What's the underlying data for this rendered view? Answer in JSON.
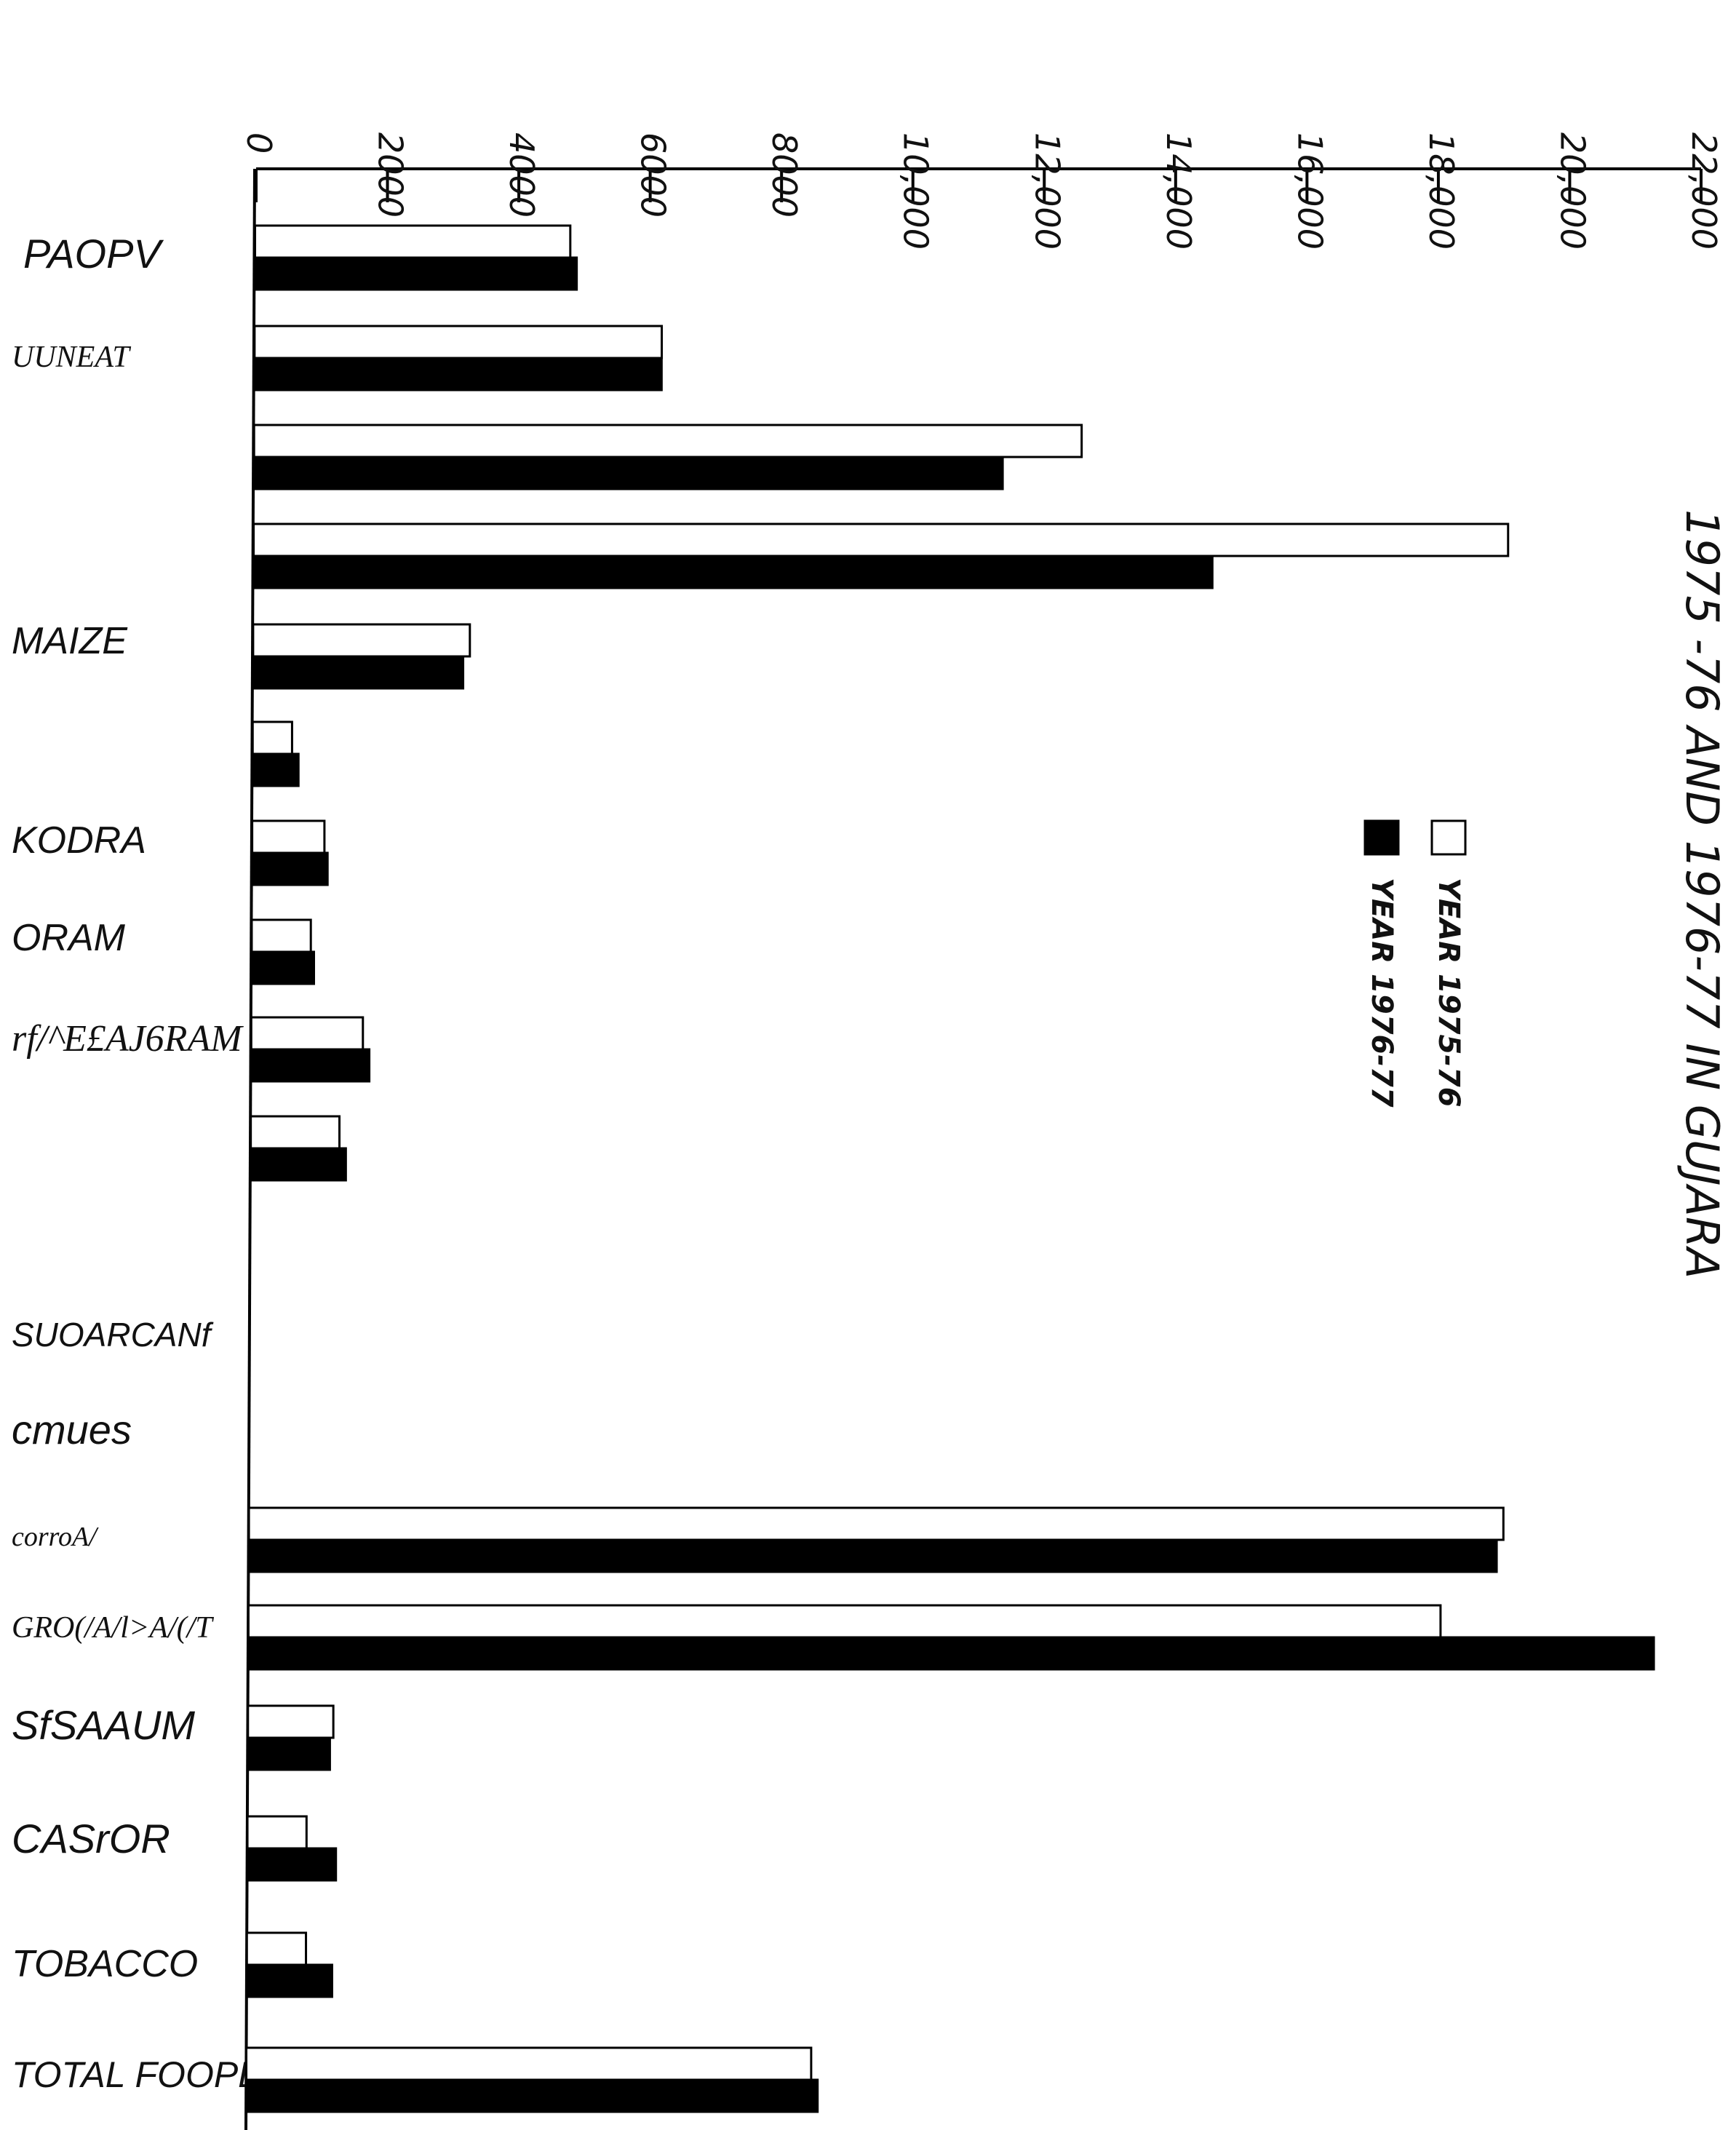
{
  "chart_data": {
    "type": "bar",
    "orientation": "horizontal",
    "title": "1975 -76 AND 1976-77 IN GUJARA",
    "xlim": [
      0,
      22000
    ],
    "x_ticks": [
      "0",
      "2000",
      "4000",
      "6000",
      "8000",
      "10,000",
      "12,000",
      "14,000",
      "16,000",
      "18,000",
      "20,000",
      "22,000"
    ],
    "categories": [
      "PAOPV",
      "UUNEAT",
      "",
      "",
      "MAIZE",
      "",
      "KODRA",
      "ORAM",
      "rf/^E£AJ6RAM",
      "",
      "SUOARCANf",
      "cmues",
      "corroA/",
      "GRO(/A/l>A/(/T",
      "SfSAAUM",
      "CASrOR",
      "TOBACCO",
      "TOTAL FOOPEA-"
    ],
    "series": [
      {
        "name": "YEAR 1975-76",
        "color": "#ffffff",
        "values": [
          4800,
          6200,
          12600,
          19100,
          3300,
          600,
          1100,
          900,
          1700,
          1350,
          null,
          50,
          19100,
          18150,
          1300,
          900,
          900,
          8600
        ]
      },
      {
        "name": "YEAR 1976-77",
        "color": "#000000",
        "values": [
          4900,
          6200,
          11400,
          14600,
          3200,
          700,
          1150,
          950,
          1800,
          1450,
          null,
          50,
          19000,
          21400,
          1250,
          1350,
          1300,
          8700
        ]
      }
    ],
    "grid": false,
    "legend_position": "right"
  }
}
